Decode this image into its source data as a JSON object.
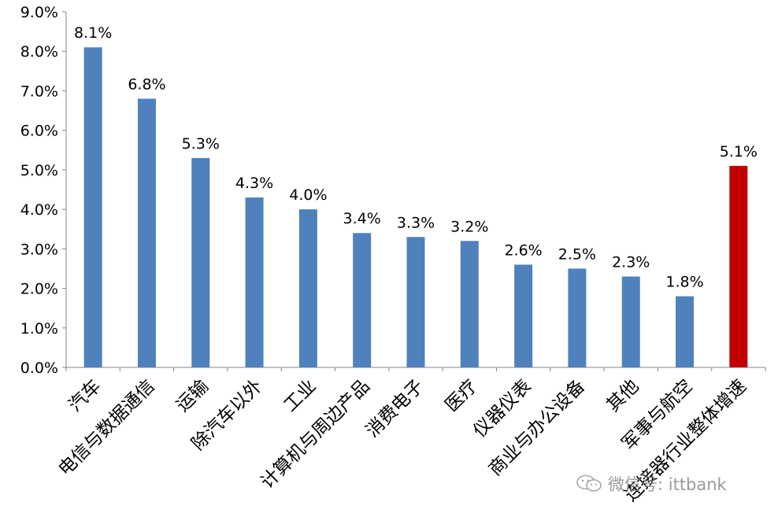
{
  "chart_data": {
    "type": "bar",
    "categories": [
      "汽车",
      "电信与数据通信",
      "运输",
      "除汽车以外",
      "工业",
      "计算机与周边产品",
      "消费电子",
      "医疗",
      "仪器仪表",
      "商业与办公设备",
      "其他",
      "军事与航空",
      "连接器行业整体增速"
    ],
    "values": [
      8.1,
      6.8,
      5.3,
      4.3,
      4.0,
      3.4,
      3.3,
      3.2,
      2.6,
      2.5,
      2.3,
      1.8,
      5.1
    ],
    "data_labels": [
      "8.1%",
      "6.8%",
      "5.3%",
      "4.3%",
      "4.0%",
      "3.4%",
      "3.3%",
      "3.2%",
      "2.6%",
      "2.5%",
      "2.3%",
      "1.8%",
      "5.1%"
    ],
    "bar_colors": [
      "#4F81BD",
      "#4F81BD",
      "#4F81BD",
      "#4F81BD",
      "#4F81BD",
      "#4F81BD",
      "#4F81BD",
      "#4F81BD",
      "#4F81BD",
      "#4F81BD",
      "#4F81BD",
      "#4F81BD",
      "#C00000"
    ],
    "ylim": [
      0,
      9
    ],
    "yticks": [
      "0.0%",
      "1.0%",
      "2.0%",
      "3.0%",
      "4.0%",
      "5.0%",
      "6.0%",
      "7.0%",
      "8.0%",
      "9.0%"
    ],
    "grid": false,
    "legend": "none"
  },
  "watermark": {
    "text": "微信号: ittbank",
    "icon": "wechat-icon"
  }
}
